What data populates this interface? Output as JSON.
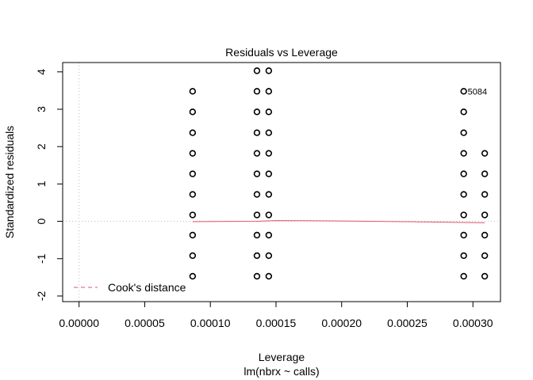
{
  "chart_data": {
    "type": "scatter",
    "title": "Residuals vs Leverage",
    "xlabel": "Leverage",
    "subtitle": "lm(nbrx ~ calls)",
    "ylabel": "Standardized residuals",
    "xlim": [
      -1.25e-05,
      0.000321
    ],
    "ylim": [
      -2.15,
      4.25
    ],
    "x_ticks": [
      {
        "value": 0.0,
        "label": "0.00000"
      },
      {
        "value": 5e-05,
        "label": "0.00005"
      },
      {
        "value": 0.0001,
        "label": "0.00010"
      },
      {
        "value": 0.00015,
        "label": "0.00015"
      },
      {
        "value": 0.0002,
        "label": "0.00020"
      },
      {
        "value": 0.00025,
        "label": "0.00025"
      },
      {
        "value": 0.0003,
        "label": "0.00030"
      }
    ],
    "y_ticks": [
      {
        "value": -2,
        "label": "-2"
      },
      {
        "value": -1,
        "label": "-1"
      },
      {
        "value": 0,
        "label": "0"
      },
      {
        "value": 1,
        "label": "1"
      },
      {
        "value": 2,
        "label": "2"
      },
      {
        "value": 3,
        "label": "3"
      },
      {
        "value": 4,
        "label": "4"
      }
    ],
    "points": [
      {
        "x": 8.65e-05,
        "y": 3.48
      },
      {
        "x": 8.65e-05,
        "y": 2.93
      },
      {
        "x": 8.65e-05,
        "y": 2.37
      },
      {
        "x": 8.65e-05,
        "y": 1.82
      },
      {
        "x": 8.65e-05,
        "y": 1.27
      },
      {
        "x": 8.65e-05,
        "y": 0.72
      },
      {
        "x": 8.65e-05,
        "y": 0.17
      },
      {
        "x": 8.65e-05,
        "y": -0.37
      },
      {
        "x": 8.65e-05,
        "y": -0.92
      },
      {
        "x": 8.65e-05,
        "y": -1.47
      },
      {
        "x": 0.0001355,
        "y": 4.03
      },
      {
        "x": 0.0001355,
        "y": 3.48
      },
      {
        "x": 0.0001355,
        "y": 2.93
      },
      {
        "x": 0.0001355,
        "y": 2.37
      },
      {
        "x": 0.0001355,
        "y": 1.82
      },
      {
        "x": 0.0001355,
        "y": 1.27
      },
      {
        "x": 0.0001355,
        "y": 0.72
      },
      {
        "x": 0.0001355,
        "y": 0.17
      },
      {
        "x": 0.0001355,
        "y": -0.37
      },
      {
        "x": 0.0001355,
        "y": -0.92
      },
      {
        "x": 0.0001355,
        "y": -1.47
      },
      {
        "x": 0.0001445,
        "y": 4.03
      },
      {
        "x": 0.0001445,
        "y": 3.48
      },
      {
        "x": 0.0001445,
        "y": 2.93
      },
      {
        "x": 0.0001445,
        "y": 2.37
      },
      {
        "x": 0.0001445,
        "y": 1.82
      },
      {
        "x": 0.0001445,
        "y": 1.27
      },
      {
        "x": 0.0001445,
        "y": 0.72
      },
      {
        "x": 0.0001445,
        "y": 0.17
      },
      {
        "x": 0.0001445,
        "y": -0.37
      },
      {
        "x": 0.0001445,
        "y": -0.92
      },
      {
        "x": 0.0001445,
        "y": -1.47
      },
      {
        "x": 0.000293,
        "y": 3.48
      },
      {
        "x": 0.000293,
        "y": 2.93
      },
      {
        "x": 0.000293,
        "y": 2.37
      },
      {
        "x": 0.000293,
        "y": 1.82
      },
      {
        "x": 0.000293,
        "y": 1.27
      },
      {
        "x": 0.000293,
        "y": 0.72
      },
      {
        "x": 0.000293,
        "y": 0.17
      },
      {
        "x": 0.000293,
        "y": -0.37
      },
      {
        "x": 0.000293,
        "y": -0.92
      },
      {
        "x": 0.000293,
        "y": -1.47
      },
      {
        "x": 0.000309,
        "y": 1.82
      },
      {
        "x": 0.000309,
        "y": 1.27
      },
      {
        "x": 0.000309,
        "y": 0.72
      },
      {
        "x": 0.000309,
        "y": 0.17
      },
      {
        "x": 0.000309,
        "y": -0.37
      },
      {
        "x": 0.000309,
        "y": -0.92
      },
      {
        "x": 0.000309,
        "y": -1.47
      }
    ],
    "smooth_line": [
      {
        "x": 8.65e-05,
        "y": -0.01
      },
      {
        "x": 0.0001355,
        "y": 0.0
      },
      {
        "x": 0.00015,
        "y": 0.02
      },
      {
        "x": 0.0002,
        "y": 0.01
      },
      {
        "x": 0.00025,
        "y": -0.01
      },
      {
        "x": 0.000309,
        "y": -0.04
      }
    ],
    "point_label": {
      "x": 0.000293,
      "y": 3.48,
      "text": "5084"
    },
    "legend": {
      "position": "bottom-left",
      "label": "Cook's distance"
    },
    "grid": false,
    "colors": {
      "points": "#000000",
      "smooth": "#DF536B",
      "cook_legend": "#DF536B",
      "reference": "#BEBEBE"
    }
  }
}
